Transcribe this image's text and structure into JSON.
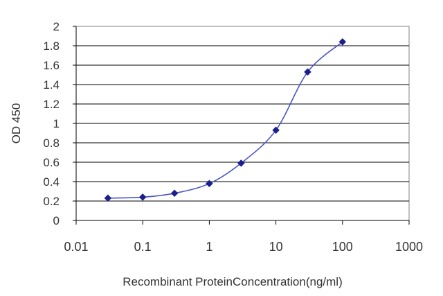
{
  "chart_data": {
    "type": "line",
    "title": "",
    "xlabel": "Recombinant ProteinConcentration(ng/ml)",
    "ylabel": "OD 450",
    "x_scale": "log",
    "xlim": [
      0.01,
      1000
    ],
    "ylim": [
      0,
      2
    ],
    "x_ticks": [
      "0.01",
      "0.1",
      "1",
      "10",
      "100",
      "1000"
    ],
    "y_ticks": [
      "0",
      "0.2",
      "0.4",
      "0.6",
      "0.8",
      "1",
      "1.2",
      "1.4",
      "1.6",
      "1.8",
      "2"
    ],
    "grid": "horizontal",
    "legend": "none",
    "series": [
      {
        "x": [
          0.03,
          0.1,
          0.3,
          1,
          3,
          10,
          30,
          100
        ],
        "y": [
          0.23,
          0.24,
          0.28,
          0.38,
          0.59,
          0.93,
          1.53,
          1.84
        ],
        "color": "#4a55c8",
        "marker_color": "#1a1f8c"
      }
    ]
  }
}
